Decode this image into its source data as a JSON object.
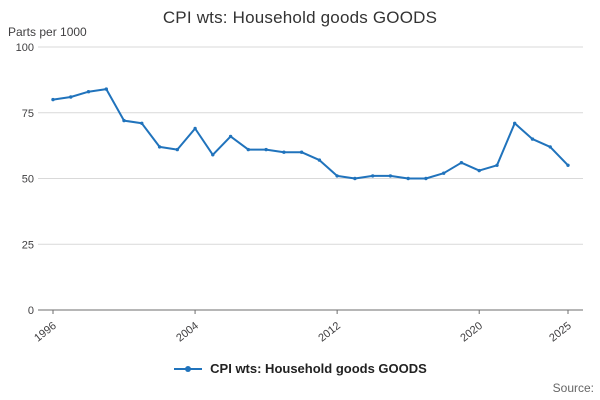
{
  "header": {
    "title": "CPI wts: Household goods GOODS"
  },
  "axes": {
    "unit_label": "Parts per 1000"
  },
  "chart_data": {
    "type": "line",
    "title": "CPI wts: Household goods GOODS",
    "xlabel": "",
    "ylabel": "Parts per 1000",
    "ylim": [
      0,
      100
    ],
    "yticks": [
      0,
      25,
      50,
      75,
      100
    ],
    "xticks": [
      1996,
      2004,
      2012,
      2020,
      2025
    ],
    "grid": true,
    "legend_position": "bottom",
    "x": [
      1996,
      1997,
      1998,
      1999,
      2000,
      2001,
      2002,
      2003,
      2004,
      2005,
      2006,
      2007,
      2008,
      2009,
      2010,
      2011,
      2012,
      2013,
      2014,
      2015,
      2016,
      2017,
      2018,
      2019,
      2020,
      2021,
      2022,
      2023,
      2024,
      2025
    ],
    "series": [
      {
        "name": "CPI wts: Household goods GOODS",
        "color": "#2073bc",
        "values": [
          80,
          81,
          83,
          84,
          72,
          71,
          62,
          61,
          69,
          59,
          66,
          61,
          61,
          60,
          60,
          57,
          51,
          50,
          51,
          51,
          50,
          50,
          52,
          56,
          53,
          55,
          71,
          65,
          62,
          55
        ]
      }
    ]
  },
  "legend": {
    "label": "CPI wts: Household goods GOODS"
  },
  "footer": {
    "source_label": "Source:"
  },
  "colors": {
    "line": "#2073bc",
    "gridline": "#d9d9d9",
    "axis": "#6e6e6e",
    "tick_text": "#414042"
  }
}
